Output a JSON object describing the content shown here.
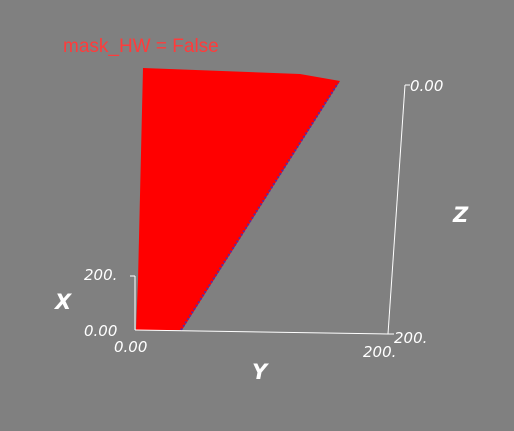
{
  "viewport": {
    "background": "#808080",
    "title": "mask_HW = False",
    "title_color": "#ff3b3b",
    "surface_color": "#ff0000",
    "edge_color": "#5a2aa0"
  },
  "axes": {
    "x": {
      "name": "X",
      "ticks": [
        "0.00",
        "200."
      ]
    },
    "y": {
      "name": "Y",
      "ticks": [
        "0.00",
        "200."
      ]
    },
    "z": {
      "name": "Z",
      "ticks": [
        "0.00",
        "200."
      ]
    }
  }
}
